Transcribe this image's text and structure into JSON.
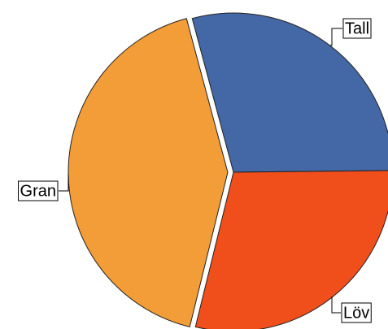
{
  "chart_data": {
    "type": "pie",
    "categories": [
      "Tall",
      "Löv",
      "Gran"
    ],
    "values": [
      29,
      29,
      42
    ],
    "colors": [
      "#4467a5",
      "#f04e1b",
      "#f29d38"
    ],
    "exploded": [
      false,
      false,
      true
    ]
  }
}
